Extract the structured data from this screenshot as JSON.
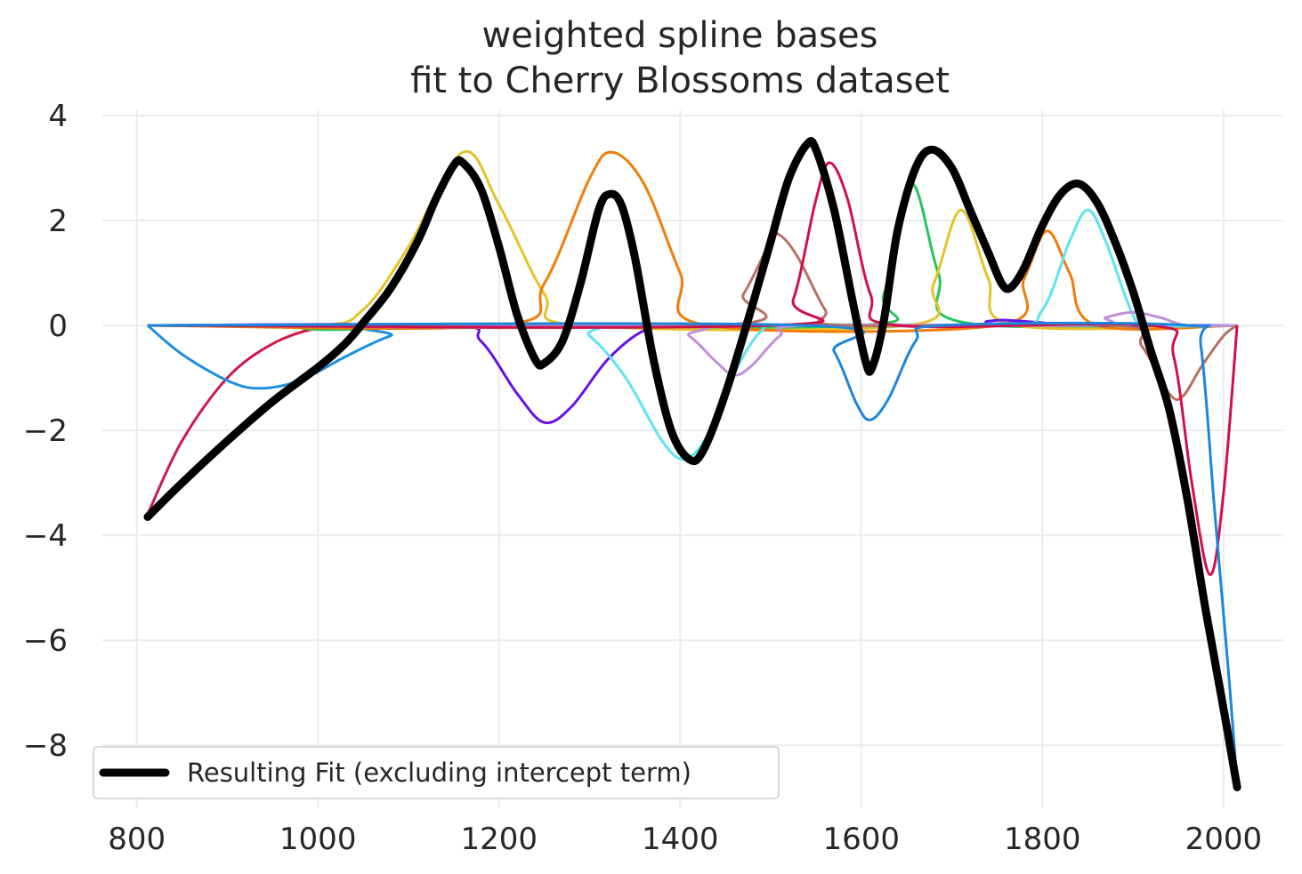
{
  "chart_data": {
    "type": "line",
    "title": [
      "weighted spline bases",
      "fit to Cherry Blossoms dataset"
    ],
    "xlabel": "",
    "ylabel": "",
    "xlim": [
      762,
      2066
    ],
    "ylim": [
      -9.2,
      4.1
    ],
    "x_ticks": [
      800,
      1000,
      1200,
      1400,
      1600,
      1800,
      2000
    ],
    "y_ticks": [
      4,
      2,
      0,
      -2,
      -4,
      -6,
      -8
    ],
    "y_tick_labels": [
      "4",
      "2",
      "0",
      "−2",
      "−4",
      "−6",
      "−8"
    ],
    "grid": true,
    "legend": {
      "placement": "lower-left",
      "entries": [
        "Resulting Fit (excluding intercept term)"
      ]
    },
    "colors": {
      "fit": "#000000",
      "grid": "#ebebeb",
      "legend_border": "#cccccc"
    },
    "series": [
      {
        "color": "#cc1a4a",
        "points": [
          [
            812,
            -3.6
          ],
          [
            850,
            -2.2
          ],
          [
            900,
            -1.0
          ],
          [
            950,
            -0.35
          ],
          [
            1000,
            -0.05
          ],
          [
            1050,
            0
          ],
          [
            2015,
            0
          ]
        ]
      },
      {
        "color": "#1f8fe0",
        "points": [
          [
            812,
            0
          ],
          [
            850,
            -0.55
          ],
          [
            900,
            -1.05
          ],
          [
            935,
            -1.2
          ],
          [
            980,
            -1.05
          ],
          [
            1030,
            -0.6
          ],
          [
            1080,
            -0.2
          ],
          [
            1130,
            0
          ],
          [
            2015,
            0
          ]
        ]
      },
      {
        "color": "#22c55e",
        "points": [
          [
            812,
            0
          ],
          [
            950,
            0
          ],
          [
            1000,
            -0.08
          ],
          [
            1080,
            -0.05
          ],
          [
            1150,
            0
          ],
          [
            1600,
            0
          ],
          [
            1625,
            0.6
          ],
          [
            1655,
            2.7
          ],
          [
            1685,
            1.0
          ],
          [
            1715,
            0.05
          ],
          [
            2015,
            0
          ]
        ]
      },
      {
        "color": "#e6c229",
        "points": [
          [
            812,
            0
          ],
          [
            1000,
            0
          ],
          [
            1050,
            0.3
          ],
          [
            1100,
            1.5
          ],
          [
            1160,
            3.3
          ],
          [
            1200,
            2.3
          ],
          [
            1250,
            0.6
          ],
          [
            1290,
            0
          ],
          [
            1650,
            0
          ],
          [
            1680,
            0.8
          ],
          [
            1710,
            2.2
          ],
          [
            1740,
            0.9
          ],
          [
            1770,
            0
          ],
          [
            2015,
            0
          ]
        ]
      },
      {
        "color": "#f07d0a",
        "points": [
          [
            812,
            0
          ],
          [
            1200,
            0
          ],
          [
            1250,
            0.8
          ],
          [
            1300,
            2.8
          ],
          [
            1325,
            3.3
          ],
          [
            1360,
            2.7
          ],
          [
            1400,
            1.0
          ],
          [
            1430,
            0
          ],
          [
            1750,
            0
          ],
          [
            1780,
            0.9
          ],
          [
            1805,
            1.8
          ],
          [
            1830,
            1.0
          ],
          [
            1860,
            0
          ],
          [
            2015,
            0
          ]
        ]
      },
      {
        "color": "#6611e8",
        "points": [
          [
            812,
            0
          ],
          [
            1140,
            0
          ],
          [
            1180,
            -0.3
          ],
          [
            1220,
            -1.3
          ],
          [
            1250,
            -1.85
          ],
          [
            1280,
            -1.55
          ],
          [
            1320,
            -0.65
          ],
          [
            1360,
            -0.1
          ],
          [
            1400,
            0
          ],
          [
            1700,
            0
          ],
          [
            1740,
            0.08
          ],
          [
            1760,
            0.1
          ],
          [
            1800,
            0.05
          ],
          [
            1840,
            0
          ],
          [
            2015,
            0
          ]
        ]
      },
      {
        "color": "#5ee3f2",
        "points": [
          [
            812,
            0
          ],
          [
            1270,
            0
          ],
          [
            1300,
            -0.2
          ],
          [
            1340,
            -1.0
          ],
          [
            1380,
            -2.2
          ],
          [
            1405,
            -2.55
          ],
          [
            1430,
            -2.1
          ],
          [
            1460,
            -0.9
          ],
          [
            1490,
            -0.1
          ],
          [
            1520,
            0
          ],
          [
            1760,
            0
          ],
          [
            1800,
            0.3
          ],
          [
            1830,
            1.6
          ],
          [
            1850,
            2.2
          ],
          [
            1870,
            1.6
          ],
          [
            1900,
            0.2
          ],
          [
            1920,
            0
          ],
          [
            2015,
            0
          ]
        ]
      },
      {
        "color": "#c08fd9",
        "points": [
          [
            812,
            0
          ],
          [
            1380,
            0
          ],
          [
            1410,
            -0.2
          ],
          [
            1440,
            -0.7
          ],
          [
            1460,
            -0.95
          ],
          [
            1480,
            -0.75
          ],
          [
            1510,
            -0.2
          ],
          [
            1540,
            0
          ],
          [
            1850,
            0
          ],
          [
            1870,
            0.15
          ],
          [
            1900,
            0.25
          ],
          [
            1930,
            0.15
          ],
          [
            1960,
            0
          ],
          [
            2015,
            0
          ]
        ]
      },
      {
        "color": "#b87060",
        "points": [
          [
            812,
            0
          ],
          [
            1440,
            0
          ],
          [
            1470,
            0.6
          ],
          [
            1500,
            1.6
          ],
          [
            1510,
            1.72
          ],
          [
            1530,
            1.3
          ],
          [
            1560,
            0.3
          ],
          [
            1580,
            0
          ],
          [
            1880,
            0
          ],
          [
            1910,
            -0.4
          ],
          [
            1940,
            -1.3
          ],
          [
            1955,
            -1.35
          ],
          [
            1975,
            -0.8
          ],
          [
            2000,
            -0.2
          ],
          [
            2015,
            0
          ]
        ]
      },
      {
        "color": "#d0104c",
        "points": [
          [
            812,
            0
          ],
          [
            1500,
            0
          ],
          [
            1525,
            0.5
          ],
          [
            1550,
            2.4
          ],
          [
            1565,
            3.1
          ],
          [
            1585,
            2.4
          ],
          [
            1610,
            0.6
          ],
          [
            1640,
            0
          ],
          [
            1920,
            0
          ],
          [
            1945,
            -0.6
          ],
          [
            1965,
            -3.0
          ],
          [
            1985,
            -4.75
          ],
          [
            2000,
            -3.2
          ],
          [
            2015,
            0
          ]
        ]
      },
      {
        "color": "#1c86dc",
        "points": [
          [
            812,
            0
          ],
          [
            1540,
            0
          ],
          [
            1570,
            -0.5
          ],
          [
            1595,
            -1.5
          ],
          [
            1610,
            -1.8
          ],
          [
            1630,
            -1.4
          ],
          [
            1660,
            -0.3
          ],
          [
            1690,
            0
          ],
          [
            1960,
            0
          ],
          [
            1975,
            -0.4
          ],
          [
            1990,
            -3.5
          ],
          [
            2005,
            -6.5
          ],
          [
            2015,
            -8.7
          ]
        ]
      }
    ],
    "fit": {
      "name": "Resulting Fit (excluding intercept term)",
      "points": [
        [
          812,
          -3.65
        ],
        [
          850,
          -3.0
        ],
        [
          900,
          -2.2
        ],
        [
          950,
          -1.45
        ],
        [
          1000,
          -0.8
        ],
        [
          1030,
          -0.35
        ],
        [
          1050,
          0.05
        ],
        [
          1080,
          0.7
        ],
        [
          1110,
          1.6
        ],
        [
          1130,
          2.4
        ],
        [
          1150,
          3.05
        ],
        [
          1160,
          3.1
        ],
        [
          1180,
          2.6
        ],
        [
          1200,
          1.5
        ],
        [
          1220,
          0.2
        ],
        [
          1240,
          -0.65
        ],
        [
          1250,
          -0.72
        ],
        [
          1270,
          -0.3
        ],
        [
          1290,
          0.8
        ],
        [
          1310,
          2.2
        ],
        [
          1322,
          2.5
        ],
        [
          1335,
          2.3
        ],
        [
          1350,
          1.3
        ],
        [
          1370,
          -0.6
        ],
        [
          1390,
          -2.0
        ],
        [
          1410,
          -2.55
        ],
        [
          1425,
          -2.4
        ],
        [
          1450,
          -1.3
        ],
        [
          1480,
          0.4
        ],
        [
          1500,
          1.6
        ],
        [
          1520,
          2.8
        ],
        [
          1540,
          3.45
        ],
        [
          1550,
          3.35
        ],
        [
          1570,
          2.2
        ],
        [
          1590,
          0.5
        ],
        [
          1605,
          -0.7
        ],
        [
          1612,
          -0.8
        ],
        [
          1625,
          0.1
        ],
        [
          1640,
          1.8
        ],
        [
          1660,
          3.0
        ],
        [
          1678,
          3.35
        ],
        [
          1700,
          3.0
        ],
        [
          1720,
          2.2
        ],
        [
          1740,
          1.4
        ],
        [
          1755,
          0.8
        ],
        [
          1765,
          0.72
        ],
        [
          1780,
          1.1
        ],
        [
          1800,
          1.9
        ],
        [
          1820,
          2.5
        ],
        [
          1840,
          2.7
        ],
        [
          1860,
          2.35
        ],
        [
          1880,
          1.6
        ],
        [
          1900,
          0.65
        ],
        [
          1920,
          -0.5
        ],
        [
          1940,
          -1.6
        ],
        [
          1960,
          -3.3
        ],
        [
          1980,
          -5.4
        ],
        [
          2000,
          -7.3
        ],
        [
          2015,
          -8.8
        ]
      ]
    }
  }
}
